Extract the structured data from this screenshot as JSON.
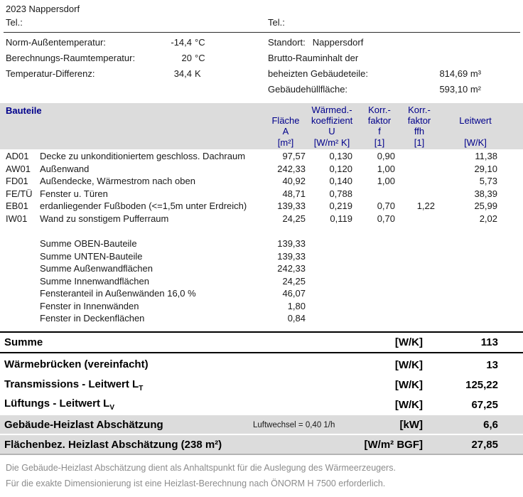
{
  "header": {
    "title": "2023 Nappersdorf",
    "tel_left": "Tel.:",
    "tel_right": "Tel.:"
  },
  "info_left": [
    {
      "label": "Norm-Außentemperatur:",
      "value": "-14,4",
      "unit": "°C"
    },
    {
      "label": "Berechnungs-Raumtemperatur:",
      "value": "20",
      "unit": "°C"
    },
    {
      "label": "Temperatur-Differenz:",
      "value": "34,4",
      "unit": "K"
    }
  ],
  "info_right": {
    "standort_label": "Standort:",
    "standort_value": "Nappersdorf",
    "brutto_line1": "Brutto-Rauminhalt der",
    "brutto_line2": "beheizten Gebäudeteile:",
    "brutto_value": "814,69 m³",
    "huelle_label": "Gebäudehüllfläche:",
    "huelle_value": "593,10 m²"
  },
  "table": {
    "title": "Bauteile",
    "columns": {
      "flaeche": [
        "",
        "Fläche",
        "A",
        "[m²]"
      ],
      "u": [
        "Wärmed.-",
        "koeffizient",
        "U",
        "[W/m² K]"
      ],
      "f": [
        "Korr.-",
        "faktor",
        "f",
        "[1]"
      ],
      "ffh": [
        "Korr.-",
        "faktor",
        "ffh",
        "[1]"
      ],
      "leitwert": [
        "",
        "Leitwert",
        "",
        "[W/K]"
      ]
    },
    "rows": [
      {
        "code": "AD01",
        "name": "Decke zu unkonditioniertem geschloss. Dachraum",
        "flaeche": "97,57",
        "u": "0,130",
        "f": "0,90",
        "ffh": "",
        "leitwert": "11,38"
      },
      {
        "code": "AW01",
        "name": "Außenwand",
        "flaeche": "242,33",
        "u": "0,120",
        "f": "1,00",
        "ffh": "",
        "leitwert": "29,10"
      },
      {
        "code": "FD01",
        "name": "Außendecke, Wärmestrom nach oben",
        "flaeche": "40,92",
        "u": "0,140",
        "f": "1,00",
        "ffh": "",
        "leitwert": "5,73"
      },
      {
        "code": "FE/TÜ",
        "name": "Fenster u. Türen",
        "flaeche": "48,71",
        "u": "0,788",
        "f": "",
        "ffh": "",
        "leitwert": "38,39"
      },
      {
        "code": "EB01",
        "name": "erdanliegender Fußboden (<=1,5m unter Erdreich)",
        "flaeche": "139,33",
        "u": "0,219",
        "f": "0,70",
        "ffh": "1,22",
        "leitwert": "25,99"
      },
      {
        "code": "IW01",
        "name": "Wand zu sonstigem Pufferraum",
        "flaeche": "24,25",
        "u": "0,119",
        "f": "0,70",
        "ffh": "",
        "leitwert": "2,02"
      }
    ],
    "summary_rows": [
      {
        "name": "Summe OBEN-Bauteile",
        "value": "139,33"
      },
      {
        "name": "Summe UNTEN-Bauteile",
        "value": "139,33"
      },
      {
        "name": "Summe Außenwandflächen",
        "value": "242,33"
      },
      {
        "name": "Summe Innenwandflächen",
        "value": "24,25"
      },
      {
        "name": "Fensteranteil in Außenwänden 16,0 %",
        "value": "46,07"
      },
      {
        "name": "Fenster in Innenwänden",
        "value": "1,80"
      },
      {
        "name": "Fenster in Deckenflächen",
        "value": "0,84"
      }
    ]
  },
  "totals": {
    "summe": {
      "label": "Summe",
      "unit": "[W/K]",
      "value": "113"
    },
    "derived": [
      {
        "label": "Wärmebrücken (vereinfacht)",
        "sub": "",
        "unit": "[W/K]",
        "value": "13"
      },
      {
        "label": "Transmissions - Leitwert L",
        "sub": "T",
        "unit": "[W/K]",
        "value": "125,22"
      },
      {
        "label": "Lüftungs - Leitwert L",
        "sub": "V",
        "unit": "[W/K]",
        "value": "67,25"
      }
    ],
    "highlight": [
      {
        "label": "Gebäude-Heizlast Abschätzung",
        "note": "Luftwechsel = 0,40 1/h",
        "unit": "[kW]",
        "value": "6,6"
      },
      {
        "label": "Flächenbez. Heizlast Abschätzung (238 m²)",
        "note": "",
        "unit": "[W/m² BGF]",
        "value": "27,85"
      }
    ]
  },
  "footer": {
    "line1": "Die Gebäude-Heizlast Abschätzung dient als Anhaltspunkt für die Auslegung des Wärmeerzeugers.",
    "line2": "Für die exakte Dimensionierung ist eine Heizlast-Berechnung nach ÖNORM H 7500 erforderlich."
  },
  "colors": {
    "band_background": "#dcdcdc",
    "header_text": "#00008b",
    "footer_text": "#8c8c8c"
  }
}
